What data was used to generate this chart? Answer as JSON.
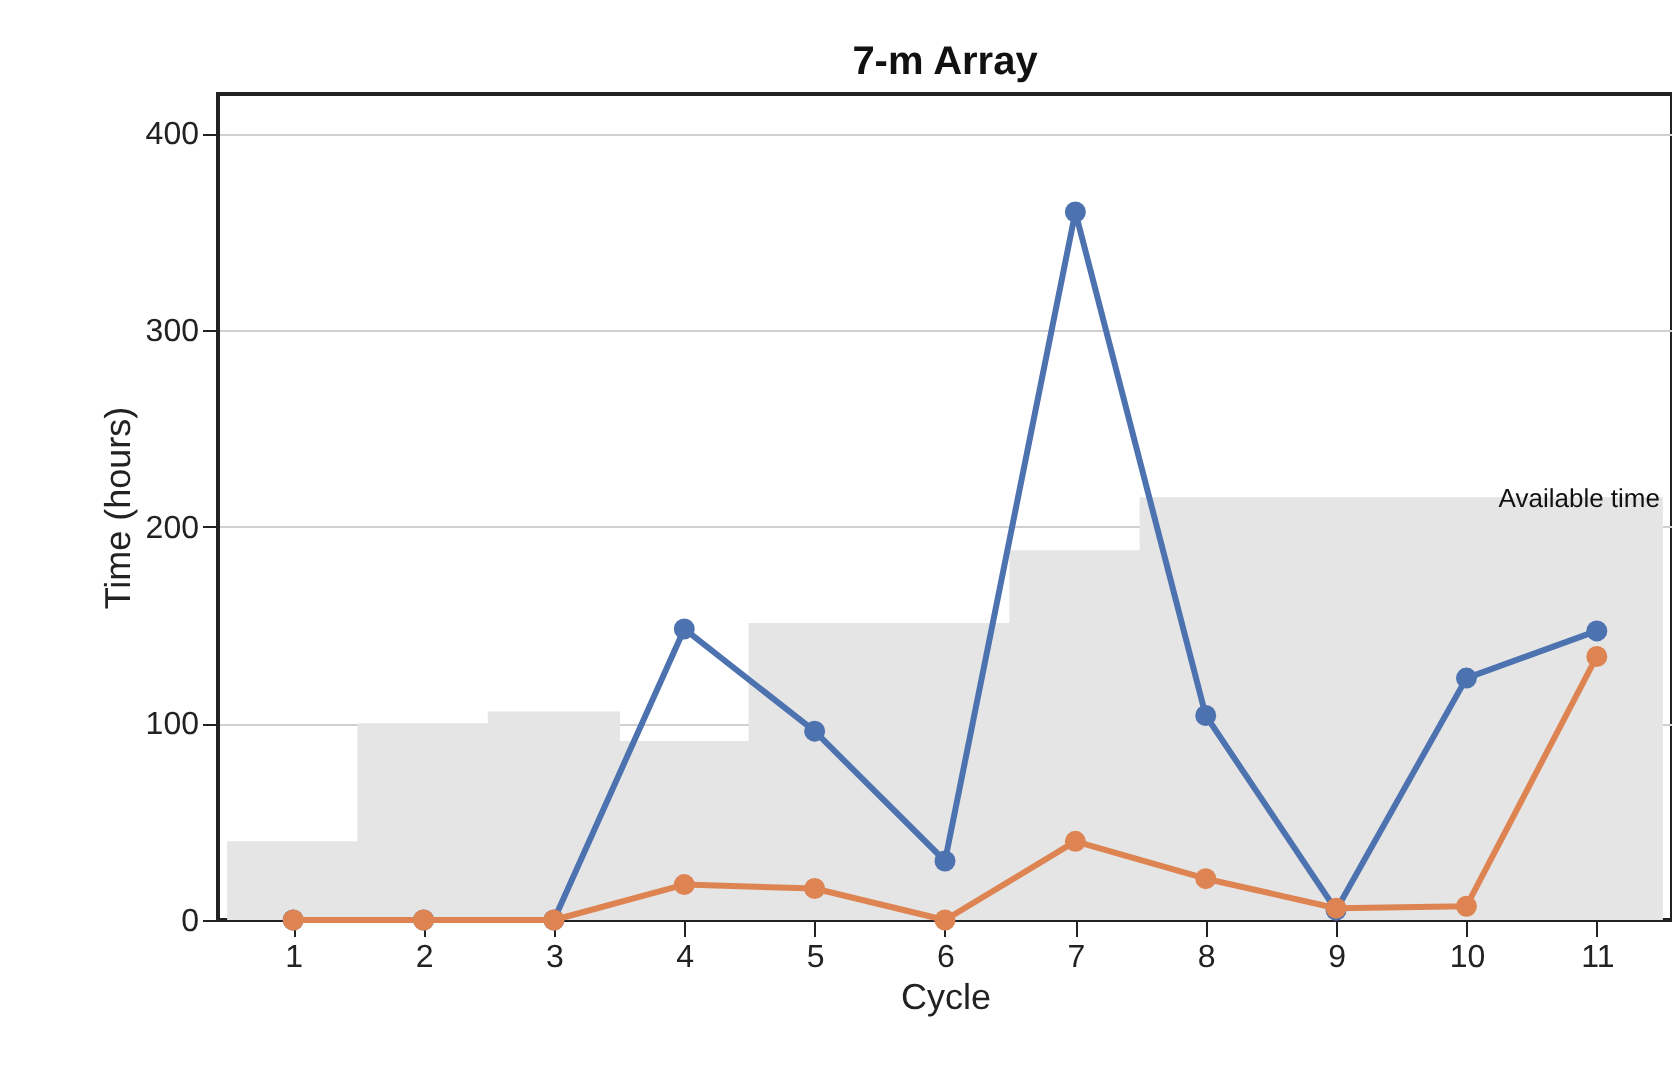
{
  "chart_data": {
    "type": "line",
    "title": "7-m Array",
    "xlabel": "Cycle",
    "ylabel": "Time (hours)",
    "x": [
      1,
      2,
      3,
      4,
      5,
      6,
      7,
      8,
      9,
      10,
      11
    ],
    "series": [
      {
        "type": "bar",
        "color": "#e5e5e5",
        "values": [
          40,
          100,
          106,
          91,
          151,
          151,
          188,
          215,
          215,
          215,
          215
        ]
      },
      {
        "color": "#4c72b0",
        "values": [
          0,
          0,
          0,
          148,
          96,
          30,
          360,
          104,
          5,
          123,
          147
        ]
      },
      {
        "color": "#dd8452",
        "values": [
          0,
          0,
          0,
          18,
          16,
          0,
          40,
          21,
          6,
          7,
          134
        ]
      }
    ],
    "annotations": [
      "Available time"
    ],
    "xlim": [
      0.5,
      11.5
    ],
    "ylim": [
      0,
      420
    ],
    "xticks": [
      1,
      2,
      3,
      4,
      5,
      6,
      7,
      8,
      9,
      10,
      11
    ],
    "yticks": [
      0,
      100,
      200,
      300,
      400
    ],
    "grid": "y",
    "marker": "circle"
  }
}
